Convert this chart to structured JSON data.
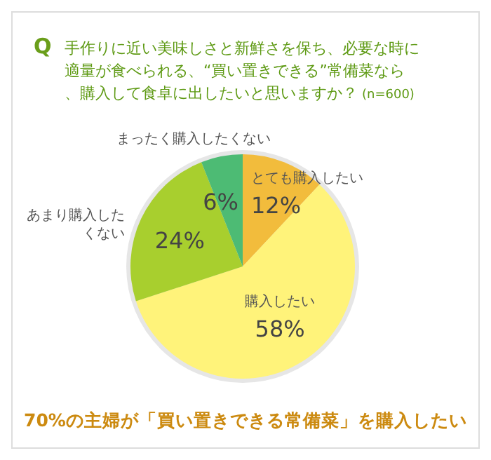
{
  "chart_data": {
    "type": "pie",
    "title": "手作りに近い美味しさと新鮮さを保ち、必要な時に適量が食べられる、“買い置きできる”常備菜なら、購入して食卓に出したいと思いますか？",
    "subtitle": "(n=600)",
    "categories": [
      "とても購入したい",
      "購入したい",
      "あまり購入したくない",
      "まったく購入したくない"
    ],
    "values": [
      12,
      58,
      24,
      6
    ],
    "value_labels": [
      "12%",
      "58%",
      "24%",
      "6%"
    ],
    "colors": [
      "#f2bc3c",
      "#fff37a",
      "#a8cf2e",
      "#4dbb74"
    ],
    "annotations": [
      "Q",
      "70%の主婦が「買い置きできる常備菜」を購入したい"
    ]
  }
}
